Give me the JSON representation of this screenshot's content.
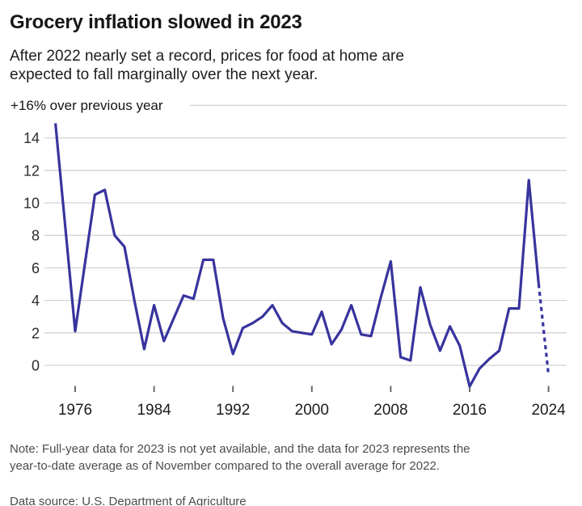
{
  "header": {
    "title": "Grocery inflation slowed in 2023",
    "subtitle_line1": "After 2022 nearly set a record, prices for food at home are",
    "subtitle_line2": "expected to fall marginally over the next year."
  },
  "chart_data": {
    "type": "line",
    "title": "Grocery inflation slowed in 2023",
    "unit_label": "+16% over previous year",
    "x": [
      1974,
      1975,
      1976,
      1977,
      1978,
      1979,
      1980,
      1981,
      1982,
      1983,
      1984,
      1985,
      1986,
      1987,
      1988,
      1989,
      1990,
      1991,
      1992,
      1993,
      1994,
      1995,
      1996,
      1997,
      1998,
      1999,
      2000,
      2001,
      2002,
      2003,
      2004,
      2005,
      2006,
      2007,
      2008,
      2009,
      2010,
      2011,
      2012,
      2013,
      2014,
      2015,
      2016,
      2017,
      2018,
      2019,
      2020,
      2021,
      2022,
      2023,
      2024
    ],
    "values": [
      14.9,
      8.5,
      2.1,
      6.3,
      10.5,
      10.8,
      8.0,
      7.3,
      4.0,
      1.0,
      3.7,
      1.5,
      2.9,
      4.3,
      4.1,
      6.5,
      6.5,
      2.9,
      0.7,
      2.3,
      2.6,
      3.0,
      3.7,
      2.6,
      2.1,
      2.0,
      1.9,
      3.3,
      1.3,
      2.2,
      3.7,
      1.9,
      1.8,
      4.2,
      6.4,
      0.5,
      0.3,
      4.8,
      2.5,
      0.9,
      2.4,
      1.2,
      -1.3,
      -0.2,
      0.4,
      0.9,
      3.5,
      3.5,
      11.4,
      5.0,
      -0.6
    ],
    "solid_until_year": 2023,
    "dashed_from_year": 2023,
    "dashed_note": "2023 is year-to-date estimate; 2024 is forecast (dashed segment)",
    "yticks": [
      0,
      2,
      4,
      6,
      8,
      10,
      12,
      14
    ],
    "ytop_gridline": 16,
    "xticks": [
      1976,
      1984,
      1992,
      2000,
      2008,
      2016,
      2024
    ],
    "xlim": [
      1974,
      2024
    ],
    "ylim": [
      -1.5,
      16
    ],
    "grid": true,
    "legend": "none",
    "line_color": "#37349e",
    "grid_color": "#d2d2d2"
  },
  "footer": {
    "note_line1": "Note: Full-year data for 2023 is not yet available, and the data for 2023 represents the",
    "note_line2": "year-to-date average as of November compared to the overall average for 2022.",
    "source": "Data source: U.S. Department of Agriculture"
  }
}
